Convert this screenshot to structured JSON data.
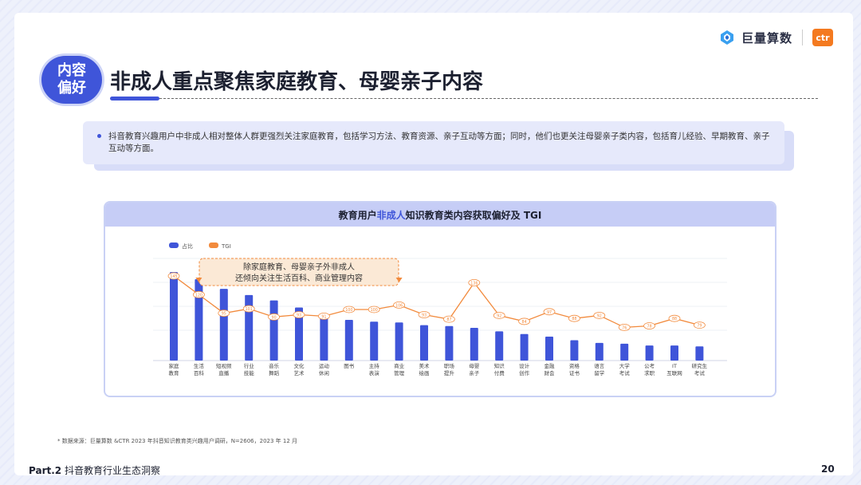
{
  "brand": {
    "name": "巨量算数",
    "partner": "ctr"
  },
  "badge": {
    "line1": "内容",
    "line2": "偏好"
  },
  "title": "非成人重点聚焦家庭教育、母婴亲子内容",
  "summary": "抖音教育兴趣用户中非成人相对整体人群更强烈关注家庭教育，包括学习方法、教育资源、亲子互动等方面；同时，他们也更关注母婴亲子类内容，包括育儿经验、早期教育、亲子互动等方面。",
  "chart_header": {
    "prefix": "教育用户",
    "highlight": "非成人",
    "suffix": "知识教育类内容获取偏好及 TGI"
  },
  "legend": {
    "bar": "占比",
    "line": "TGI"
  },
  "callout": {
    "line1": "除家庭教育、母婴亲子外非成人",
    "line2": "还倾向关注生活百科、商业管理内容"
  },
  "colors": {
    "bar": "#3f55d9",
    "line": "#f28a3c",
    "callout_bg": "#fbe9d6"
  },
  "chart_data": {
    "type": "bar",
    "categories": [
      [
        "家庭",
        "教育"
      ],
      [
        "生活",
        "百科"
      ],
      [
        "短视频",
        "直播"
      ],
      [
        "行业",
        "技能"
      ],
      [
        "音乐",
        "舞蹈"
      ],
      [
        "文化",
        "艺术"
      ],
      [
        "运动",
        "休闲"
      ],
      [
        "图书"
      ],
      [
        "主持",
        "表演"
      ],
      [
        "商业",
        "管理"
      ],
      [
        "美术",
        "绘画"
      ],
      [
        "职场",
        "提升"
      ],
      [
        "母婴",
        "亲子"
      ],
      [
        "知识",
        "付费"
      ],
      [
        "设计",
        "创作"
      ],
      [
        "金融",
        "财会"
      ],
      [
        "资格",
        "证书"
      ],
      [
        "语言",
        "留学"
      ],
      [
        "大学",
        "考试"
      ],
      [
        "公考",
        "求职"
      ],
      [
        "IT",
        "互联网"
      ],
      [
        "研究生",
        "考试"
      ]
    ],
    "series": [
      {
        "name": "占比",
        "type": "bar",
        "values": [
          100,
          92,
          81,
          74,
          68,
          60,
          48,
          46,
          44,
          43,
          40,
          39,
          37,
          33,
          30,
          27,
          23,
          20,
          19,
          17,
          17,
          16
        ]
      },
      {
        "name": "TGI",
        "type": "line",
        "values": [
          145,
          120,
          95,
          101,
          90,
          93,
          91,
          100,
          100,
          106,
          93,
          87,
          136,
          92,
          84,
          97,
          88,
          92,
          76,
          78,
          88,
          79
        ]
      }
    ],
    "ylim_bar": [
      0,
      110
    ],
    "ylim_line": [
      40,
      160
    ]
  },
  "footnote": "* 数据来源：巨量算数 &CTR 2023 年抖音知识教育类兴趣用户调研，N=2606，2023 年 12 月",
  "footer": {
    "part": "Part.2",
    "section": "抖音教育行业生态洞察",
    "page": "20"
  }
}
